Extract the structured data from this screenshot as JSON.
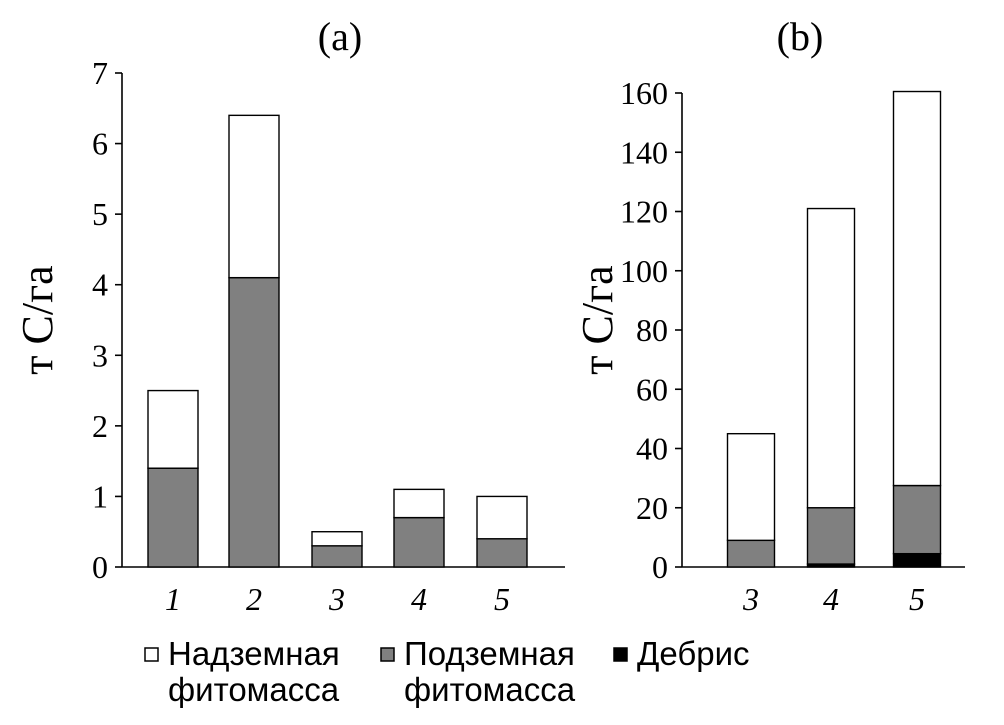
{
  "chart_data": [
    {
      "type": "bar",
      "stacked": true,
      "title": "(a)",
      "ylabel": "т С/га",
      "categories": [
        "1",
        "2",
        "3",
        "4",
        "5"
      ],
      "ylim": [
        0,
        7
      ],
      "yticks": [
        "0",
        "1",
        "2",
        "3",
        "4",
        "5",
        "6",
        "7"
      ],
      "series": [
        {
          "key": "below",
          "values": [
            1.4,
            4.1,
            0.3,
            0.7,
            0.4
          ],
          "color": "#808080"
        },
        {
          "key": "above",
          "values": [
            1.1,
            2.3,
            0.2,
            0.4,
            0.6
          ],
          "color": "#ffffff"
        }
      ],
      "grid": false
    },
    {
      "type": "bar",
      "stacked": true,
      "title": "(b)",
      "ylabel": "т С/га",
      "categories": [
        "3",
        "4",
        "5"
      ],
      "ylim": [
        0,
        160
      ],
      "yticks": [
        "0",
        "20",
        "40",
        "60",
        "80",
        "100",
        "120",
        "140",
        "160"
      ],
      "series": [
        {
          "key": "debris",
          "values": [
            0,
            1,
            4.5
          ],
          "color": "#000000"
        },
        {
          "key": "below",
          "values": [
            9,
            19,
            23
          ],
          "color": "#808080"
        },
        {
          "key": "above",
          "values": [
            36,
            101,
            133
          ],
          "color": "#ffffff"
        }
      ],
      "grid": false
    }
  ],
  "legend": {
    "placement": "bottom",
    "items": [
      {
        "key": "above",
        "line1": "Надземная",
        "line2": "фитомасса",
        "color": "#ffffff"
      },
      {
        "key": "below",
        "line1": "Подземная",
        "line2": "фитомасса",
        "color": "#808080"
      },
      {
        "key": "debris",
        "line1": "Дебрис",
        "line2": "",
        "color": "#000000"
      }
    ]
  }
}
